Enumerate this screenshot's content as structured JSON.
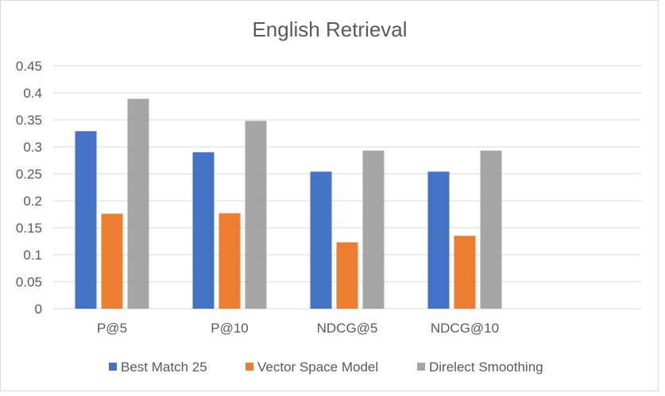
{
  "chart_data": {
    "type": "bar",
    "title": "English Retrieval",
    "xlabel": "",
    "ylabel": "",
    "categories": [
      "P@5",
      "P@10",
      "NDCG@5",
      "NDCG@10",
      ""
    ],
    "series": [
      {
        "name": "Best Match 25",
        "color": "#4472C4",
        "values": [
          0.329,
          0.29,
          0.254,
          0.254,
          null
        ]
      },
      {
        "name": "Vector Space Model",
        "color": "#ED7D31",
        "values": [
          0.176,
          0.177,
          0.123,
          0.135,
          null
        ]
      },
      {
        "name": "Direlect Smoothing",
        "color": "#A5A5A5",
        "values": [
          0.389,
          0.348,
          0.293,
          0.293,
          null
        ]
      }
    ],
    "ylim": [
      0,
      0.45
    ],
    "yticks": [
      "0",
      "0.05",
      "0.1",
      "0.15",
      "0.2",
      "0.25",
      "0.3",
      "0.35",
      "0.4",
      "0.45"
    ],
    "grid": true,
    "legend_position": "bottom"
  }
}
